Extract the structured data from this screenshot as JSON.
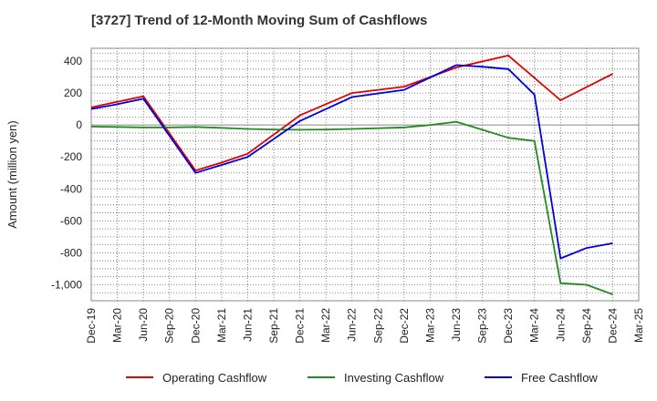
{
  "chart_data": {
    "type": "line",
    "title": "[3727]  Trend of 12-Month Moving Sum of Cashflows",
    "xlabel": "",
    "ylabel": "Amount (million yen)",
    "ylim": [
      -1100,
      480
    ],
    "yticks": [
      400,
      200,
      0,
      -200,
      -400,
      -600,
      -800,
      -1000
    ],
    "ytick_labels": [
      "400",
      "200",
      "0",
      "-200",
      "-400",
      "-600",
      "-800",
      "-1,000"
    ],
    "categories": [
      "Dec-19",
      "Mar-20",
      "Jun-20",
      "Sep-20",
      "Dec-20",
      "Mar-21",
      "Jun-21",
      "Sep-21",
      "Dec-21",
      "Mar-22",
      "Jun-22",
      "Sep-22",
      "Dec-22",
      "Mar-23",
      "Jun-23",
      "Sep-23",
      "Dec-23",
      "Mar-24",
      "Jun-24",
      "Sep-24",
      "Dec-24",
      "Mar-25"
    ],
    "grid": true,
    "legend_position": "bottom",
    "series": [
      {
        "name": "Operating Cashflow",
        "color": "#e00000",
        "values": [
          110,
          145,
          180,
          null,
          -285,
          -235,
          -180,
          null,
          60,
          null,
          200,
          null,
          240,
          null,
          360,
          null,
          435,
          null,
          155,
          null,
          320,
          null
        ]
      },
      {
        "name": "Investing Cashflow",
        "color": "#228b22",
        "values": [
          -10,
          -12,
          -15,
          -15,
          -12,
          -18,
          -25,
          -28,
          -30,
          -28,
          -25,
          -20,
          -15,
          0,
          20,
          -30,
          -80,
          -100,
          -990,
          -1000,
          -1060,
          null
        ]
      },
      {
        "name": "Free Cashflow",
        "color": "#0000dd",
        "values": [
          100,
          130,
          165,
          null,
          -300,
          -250,
          -200,
          null,
          25,
          null,
          175,
          null,
          220,
          null,
          375,
          365,
          350,
          190,
          -835,
          -770,
          -740,
          null
        ]
      }
    ]
  }
}
